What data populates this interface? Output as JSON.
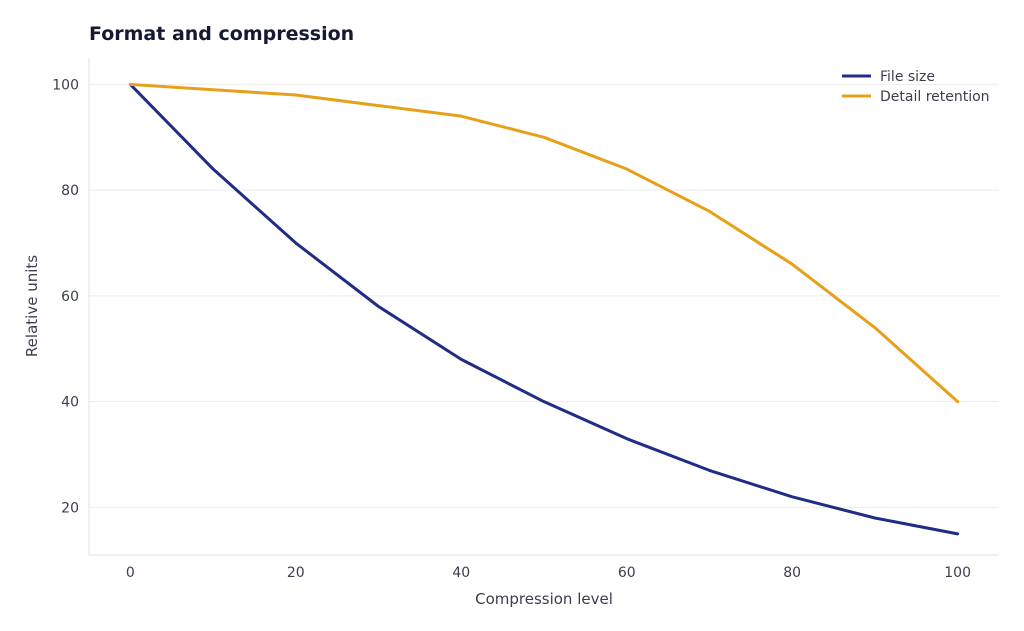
{
  "chart_data": {
    "type": "line",
    "title": "Format and compression",
    "xlabel": "Compression level",
    "ylabel": "Relative units",
    "xlim": [
      -5,
      105
    ],
    "ylim": [
      11,
      105
    ],
    "xticks": [
      0,
      20,
      40,
      60,
      80,
      100
    ],
    "yticks": [
      20,
      40,
      60,
      80,
      100
    ],
    "grid": "horizontal",
    "legend_position": "top-right",
    "x": [
      0,
      10,
      20,
      30,
      40,
      50,
      60,
      70,
      80,
      90,
      100
    ],
    "series": [
      {
        "name": "File size",
        "color": "#1f2d84",
        "values": [
          100,
          84,
          70,
          58,
          48,
          40,
          33,
          27,
          22,
          18,
          15
        ]
      },
      {
        "name": "Detail retention",
        "color": "#e6a01a",
        "values": [
          100,
          99,
          98,
          96,
          94,
          90,
          84,
          76,
          66,
          54,
          40
        ]
      }
    ]
  }
}
